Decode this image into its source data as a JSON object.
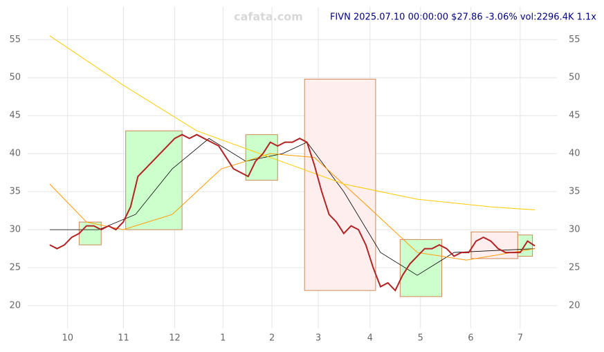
{
  "chart_data": {
    "type": "line",
    "title": "FIVN 2025.07.10 00:00:00 $27.86 -3.06% vol:2296.4K 1.1x",
    "watermark": "cafata.com",
    "xlim": [
      -9,
      207
    ],
    "ylim": [
      17,
      59.3
    ],
    "xticks": [
      {
        "value": 7.3,
        "label": "10"
      },
      {
        "value": 30.1,
        "label": "11"
      },
      {
        "value": 51,
        "label": "12"
      },
      {
        "value": 70.7,
        "label": "1"
      },
      {
        "value": 90.7,
        "label": "2"
      },
      {
        "value": 109.6,
        "label": "3"
      },
      {
        "value": 130.7,
        "label": "4"
      },
      {
        "value": 151.3,
        "label": "5"
      },
      {
        "value": 171.8,
        "label": "6"
      },
      {
        "value": 192,
        "label": "7"
      }
    ],
    "yticks": [
      20,
      25,
      30,
      35,
      40,
      45,
      50,
      55
    ],
    "grid": true,
    "boxes": [
      {
        "x": [
          12,
          21
        ],
        "y": [
          28,
          31
        ],
        "color": "#ccffcc"
      },
      {
        "x": [
          31,
          54
        ],
        "y": [
          30,
          43
        ],
        "color": "#ccffcc"
      },
      {
        "x": [
          80,
          93
        ],
        "y": [
          36.5,
          42.5
        ],
        "color": "#ccffcc"
      },
      {
        "x": [
          104,
          133
        ],
        "y": [
          22,
          49.8
        ],
        "color": "#ffeeee"
      },
      {
        "x": [
          143,
          160
        ],
        "y": [
          21.2,
          28.7
        ],
        "color": "#ccffcc"
      },
      {
        "x": [
          172,
          191
        ],
        "y": [
          26.2,
          29.7
        ],
        "color": "#ffeeee"
      },
      {
        "x": [
          191,
          197
        ],
        "y": [
          26.5,
          29.3
        ],
        "color": "#ccffcc"
      }
    ],
    "series": [
      {
        "color": "#b22222",
        "width": 2,
        "x": [
          0,
          3,
          6,
          9,
          12,
          15,
          18,
          21,
          24,
          27,
          30,
          33,
          36,
          39,
          42,
          45,
          48,
          51,
          54,
          57,
          60,
          63,
          66,
          69,
          72,
          75,
          78,
          81,
          84,
          87,
          90,
          93,
          96,
          99,
          102,
          105,
          108,
          111,
          114,
          117,
          120,
          123,
          126,
          129,
          132,
          135,
          138,
          141,
          144,
          147,
          150,
          153,
          156,
          159,
          162,
          165,
          168,
          171,
          174,
          177,
          180,
          183,
          186,
          189,
          192,
          195,
          198
        ],
        "values": [
          28,
          27.5,
          28,
          29,
          29.5,
          30.5,
          30.5,
          30,
          30.5,
          30,
          31,
          33,
          37,
          38,
          39,
          40,
          41,
          42,
          42.5,
          42,
          42.5,
          42,
          41.5,
          41,
          39.5,
          38,
          37.5,
          37,
          39,
          40,
          41.5,
          41,
          41.5,
          41.5,
          42,
          41.5,
          38.5,
          35,
          32,
          31,
          29.5,
          30.5,
          30,
          28,
          25,
          22.5,
          23,
          22,
          24,
          25.5,
          26.5,
          27.5,
          27.5,
          28,
          27.5,
          26.5,
          27,
          27,
          28.5,
          29,
          28.5,
          27.5,
          27,
          27,
          27,
          28.5,
          27.86
        ]
      },
      {
        "color": "#ffcc00",
        "width": 1,
        "x": [
          0,
          30,
          60,
          90,
          120,
          150,
          180,
          198
        ],
        "values": [
          55.5,
          49,
          43,
          39.5,
          36,
          34,
          33,
          32.6
        ]
      },
      {
        "color": "#ff9900",
        "width": 1,
        "x": [
          0,
          15,
          30,
          50,
          70,
          90,
          108,
          130,
          150,
          170,
          198
        ],
        "values": [
          36,
          31,
          30,
          32,
          38,
          40,
          39.5,
          33,
          27,
          26,
          27.5
        ]
      },
      {
        "color": "#000000",
        "width": 0.8,
        "x": [
          0,
          20,
          35,
          50,
          65,
          80,
          95,
          105,
          120,
          135,
          150,
          165,
          198
        ],
        "values": [
          30,
          30,
          32,
          38,
          42,
          39,
          40,
          41.5,
          35,
          27,
          24,
          27,
          27.5
        ]
      }
    ]
  }
}
